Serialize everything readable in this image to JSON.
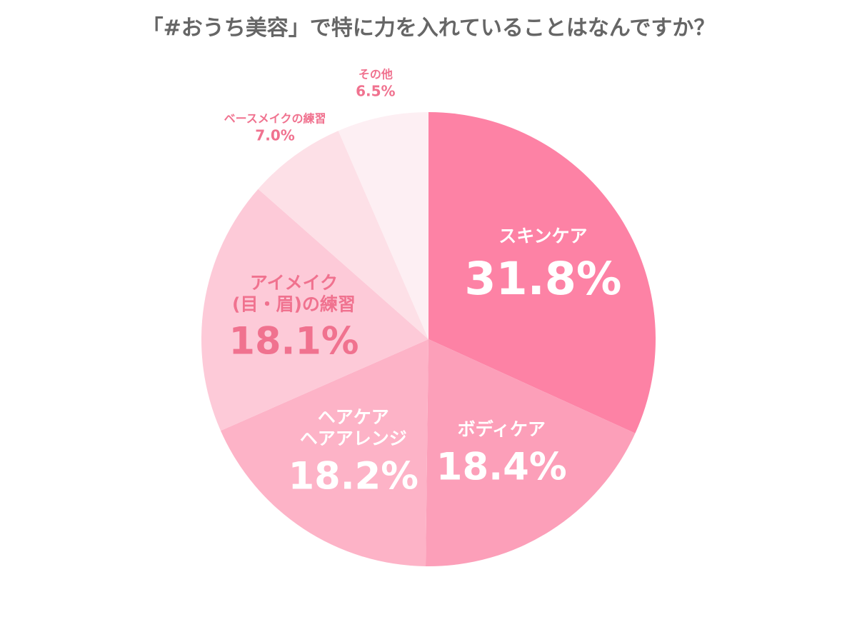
{
  "chart_data": {
    "type": "pie",
    "title": "「#おうち美容」で特に力を入れていることはなんですか？",
    "categories": [
      "スキンケア",
      "ボディケア",
      "ヘアケア\nヘアアレンジ",
      "アイメイク\n(目・眉)の練習",
      "ベースメイクの練習",
      "その他"
    ],
    "values": [
      31.8,
      18.4,
      18.2,
      18.1,
      7.0,
      6.5
    ],
    "value_labels": [
      "31.8%",
      "18.4%",
      "18.2%",
      "18.1%",
      "7.0%",
      "6.5%"
    ],
    "colors": [
      "#fd82a5",
      "#fc9fb9",
      "#fdb3c7",
      "#fdcad8",
      "#fde0e7",
      "#fdeff3"
    ],
    "label_colors": [
      "#ffffff",
      "#ffffff",
      "#ffffff",
      "#f0728f",
      "#f0728f",
      "#f0728f"
    ]
  }
}
